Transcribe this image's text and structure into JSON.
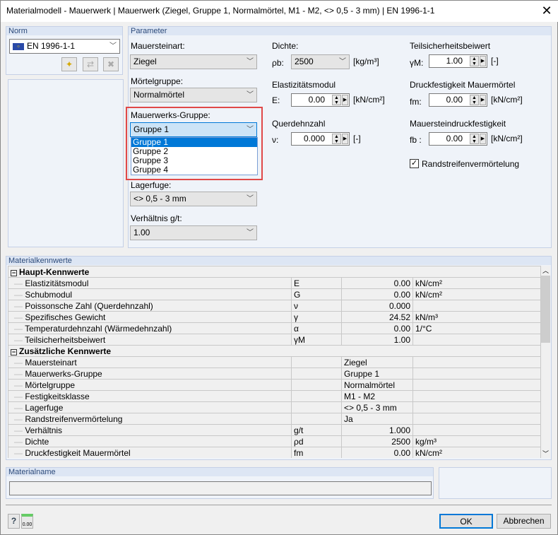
{
  "window": {
    "title": "Materialmodell - Mauerwerk | Mauerwerk (Ziegel, Gruppe 1, Normalmörtel, M1 - M2, <> 0,5 - 3 mm) | EN 1996-1-1",
    "close": "✕"
  },
  "norm": {
    "header": "Norm",
    "value": "EN 1996-1-1"
  },
  "parameter": {
    "header": "Parameter",
    "mauersteinart": {
      "label": "Mauersteinart:",
      "value": "Ziegel"
    },
    "moertelgruppe": {
      "label": "Mörtelgruppe:",
      "value": "Normalmörtel"
    },
    "mauerwerksgruppe": {
      "label": "Mauerwerks-Gruppe:",
      "value": "Gruppe 1",
      "options": [
        "Gruppe 1",
        "Gruppe 2",
        "Gruppe 3",
        "Gruppe 4"
      ]
    },
    "lagerfuge": {
      "label": "Lagerfuge:",
      "value": "<> 0,5 - 3 mm"
    },
    "verhaeltnis": {
      "label": "Verhältnis g/t:",
      "value": "1.00"
    },
    "dichte": {
      "label": "Dichte:",
      "symbol": "ρb:",
      "value": "2500",
      "unit": "[kg/m³]"
    },
    "emodul": {
      "label": "Elastizitätsmodul",
      "symbol": "E:",
      "value": "0.00",
      "unit": "[kN/cm²]"
    },
    "querdehnzahl": {
      "label": "Querdehnzahl",
      "symbol": "ν:",
      "value": "0.000",
      "unit": "[-]"
    },
    "teilsicherheit": {
      "label": "Teilsicherheitsbeiwert",
      "symbol": "γM:",
      "value": "1.00",
      "unit": "[-]"
    },
    "druckmoertel": {
      "label": "Druckfestigkeit Mauermörtel",
      "symbol": "fm:",
      "value": "0.00",
      "unit": "[kN/cm²]"
    },
    "steindruck": {
      "label": "Mauersteindruckfestigkeit",
      "symbol": "fb :",
      "value": "0.00",
      "unit": "[kN/cm²]"
    },
    "randstreifen": {
      "label": "Randstreifenvermörtelung",
      "checked": true
    }
  },
  "kennwerte": {
    "header": "Materialkennwerte",
    "sections": [
      {
        "title": "Haupt-Kennwerte",
        "rows": [
          [
            "Elastizitätsmodul",
            "E",
            "0.00",
            "kN/cm²"
          ],
          [
            "Schubmodul",
            "G",
            "0.00",
            "kN/cm²"
          ],
          [
            "Poissonsche Zahl (Querdehnzahl)",
            "ν",
            "0.000",
            ""
          ],
          [
            "Spezifisches Gewicht",
            "γ",
            "24.52",
            "kN/m³"
          ],
          [
            "Temperaturdehnzahl (Wärmedehnzahl)",
            "α",
            "0.00",
            "1/°C"
          ],
          [
            "Teilsicherheitsbeiwert",
            "γM",
            "1.00",
            ""
          ]
        ]
      },
      {
        "title": "Zusätzliche Kennwerte",
        "rows": [
          [
            "Mauersteinart",
            "",
            "Ziegel",
            ""
          ],
          [
            "Mauerwerks-Gruppe",
            "",
            "Gruppe 1",
            ""
          ],
          [
            "Mörtelgruppe",
            "",
            "Normalmörtel",
            ""
          ],
          [
            "Festigkeitsklasse",
            "",
            "M1 - M2",
            ""
          ],
          [
            "Lagerfuge",
            "",
            "<> 0,5 - 3 mm",
            ""
          ],
          [
            "Randstreifenvermörtelung",
            "",
            "Ja",
            ""
          ],
          [
            "Verhältnis",
            "g/t",
            "1.000",
            ""
          ],
          [
            "Dichte",
            "ρd",
            "2500",
            "kg/m³"
          ],
          [
            "Druckfestigkeit Mauermörtel",
            "fm",
            "0.00",
            "kN/cm²"
          ]
        ]
      }
    ]
  },
  "materialname": {
    "header": "Materialname",
    "value": ""
  },
  "buttons": {
    "ok": "OK",
    "cancel": "Abbrechen",
    "units_icon_text": "0.00"
  }
}
